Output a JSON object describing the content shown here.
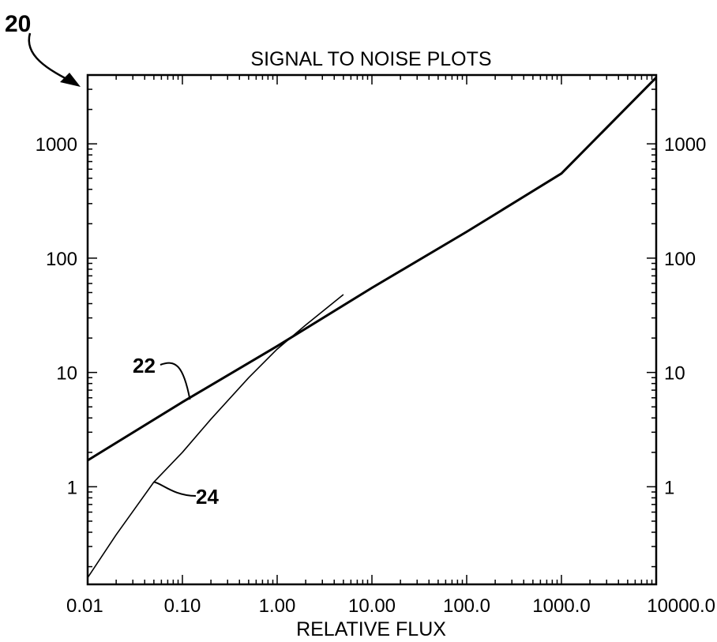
{
  "figure_label": "20",
  "chart_data": {
    "type": "line",
    "title": "SIGNAL TO NOISE PLOTS",
    "xlabel": "RELATIVE FLUX",
    "ylabel": "",
    "x_scale": "log",
    "y_scale": "log",
    "xlim": [
      0.01,
      10000
    ],
    "ylim": [
      0.14,
      4000
    ],
    "x_tick_values": [
      0.01,
      0.1,
      1,
      10,
      100,
      1000,
      10000
    ],
    "x_tick_labels": [
      "0.01",
      "0.10",
      "1.00",
      "10.00",
      "100.0",
      "1000.0",
      "10000.0"
    ],
    "y_tick_values": [
      1,
      10,
      100,
      1000
    ],
    "y_tick_labels": [
      "1",
      "10",
      "100",
      "1000"
    ],
    "right_y_tick_labels": [
      "1",
      "10",
      "100",
      "1000"
    ],
    "grid": false,
    "series": [
      {
        "name": "22",
        "x": [
          0.01,
          0.1,
          1,
          10,
          100,
          1000,
          10000
        ],
        "y": [
          1.7,
          5.5,
          17,
          55,
          170,
          550,
          3800
        ]
      },
      {
        "name": "24",
        "x": [
          0.01,
          0.02,
          0.05,
          0.1,
          0.2,
          0.5,
          1,
          2,
          5
        ],
        "y": [
          0.16,
          0.38,
          1.1,
          2.0,
          3.9,
          9,
          16,
          26,
          48
        ]
      }
    ]
  }
}
